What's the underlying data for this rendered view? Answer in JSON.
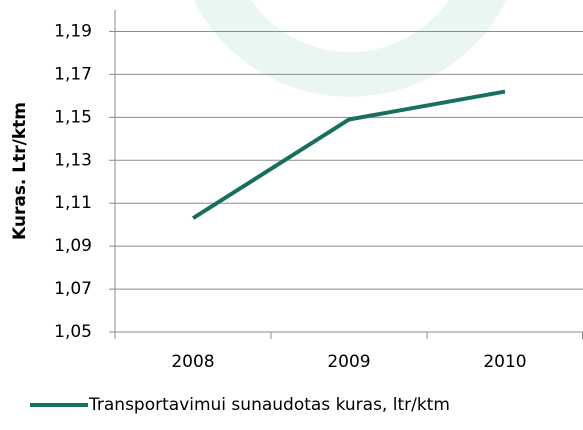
{
  "chart_data": {
    "type": "line",
    "y_axis_label": "Kuras. Ltr/ktm",
    "categories": [
      "2008",
      "2009",
      "2010"
    ],
    "series": [
      {
        "name": "Transportavimui sunaudotas kuras, ltr/ktm",
        "color": "#17705f",
        "values": [
          1.103,
          1.149,
          1.162
        ]
      }
    ],
    "ylim": [
      1.05,
      1.2
    ],
    "yticks": [
      {
        "value": 1.05,
        "label": "1,05"
      },
      {
        "value": 1.07,
        "label": "1,07"
      },
      {
        "value": 1.09,
        "label": "1,09"
      },
      {
        "value": 1.11,
        "label": "1,11"
      },
      {
        "value": 1.13,
        "label": "1,13"
      },
      {
        "value": 1.15,
        "label": "1,15"
      },
      {
        "value": 1.17,
        "label": "1,17"
      },
      {
        "value": 1.19,
        "label": "1,19"
      }
    ],
    "grid": true,
    "legend": "bottom"
  }
}
